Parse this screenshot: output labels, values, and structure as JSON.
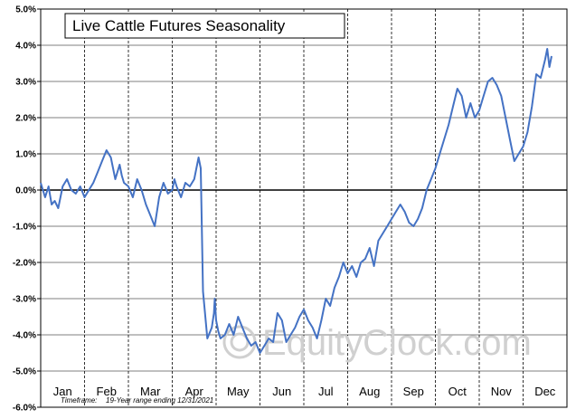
{
  "watermark": {
    "text": "EquityClock.com",
    "icon": "equityclock-logo-icon"
  },
  "timeframe": {
    "label": "Timeframe:",
    "text": "19-Year range ending 12/31/2021"
  },
  "colors": {
    "line": "#4472c4",
    "grid": "#000000",
    "watermark": "#d0d0d0"
  },
  "chart_data": {
    "type": "line",
    "title": "Live Cattle Futures Seasonality",
    "xlabel": "",
    "ylabel": "",
    "ylim": [
      -6.0,
      5.0
    ],
    "y_ticks": [
      "5.0%",
      "4.0%",
      "3.0%",
      "2.0%",
      "1.0%",
      "0.0%",
      "-1.0%",
      "-2.0%",
      "-3.0%",
      "-4.0%",
      "-5.0%",
      "-6.0%"
    ],
    "y_tick_values": [
      5,
      4,
      3,
      2,
      1,
      0,
      -1,
      -2,
      -3,
      -4,
      -5,
      -6
    ],
    "months": [
      "Jan",
      "Feb",
      "Mar",
      "Apr",
      "May",
      "Jun",
      "Jul",
      "Aug",
      "Sep",
      "Oct",
      "Nov",
      "Dec"
    ],
    "grid": {
      "horizontal": true,
      "vertical_dashed": true,
      "zero_line": true
    },
    "series": [
      {
        "x": [
          0.0,
          0.1,
          0.18,
          0.25,
          0.32,
          0.4,
          0.5,
          0.6,
          0.7,
          0.8,
          0.9,
          1.0,
          1.1,
          1.2,
          1.3,
          1.4,
          1.5,
          1.6,
          1.7,
          1.8,
          1.85,
          1.9,
          2.0,
          2.1,
          2.2,
          2.3,
          2.4,
          2.5,
          2.6,
          2.7,
          2.8,
          2.9,
          3.0,
          3.05,
          3.1,
          3.2,
          3.3,
          3.4,
          3.5,
          3.6,
          3.65,
          3.7,
          3.8,
          3.9,
          3.95,
          3.97,
          4.0,
          4.05,
          4.1,
          4.2,
          4.3,
          4.4,
          4.5,
          4.6,
          4.7,
          4.8,
          4.9,
          5.0,
          5.1,
          5.2,
          5.3,
          5.4,
          5.5,
          5.6,
          5.7,
          5.8,
          5.9,
          6.0,
          6.1,
          6.2,
          6.3,
          6.4,
          6.5,
          6.6,
          6.7,
          6.8,
          6.9,
          7.0,
          7.1,
          7.2,
          7.3,
          7.4,
          7.5,
          7.6,
          7.7,
          7.8,
          7.9,
          8.0,
          8.1,
          8.2,
          8.3,
          8.4,
          8.5,
          8.6,
          8.7,
          8.8,
          8.9,
          9.0,
          9.1,
          9.2,
          9.3,
          9.4,
          9.5,
          9.6,
          9.7,
          9.8,
          9.9,
          10.0,
          10.1,
          10.2,
          10.3,
          10.4,
          10.5,
          10.6,
          10.7,
          10.8,
          10.9,
          11.0,
          11.1,
          11.2,
          11.3,
          11.4,
          11.5,
          11.55,
          11.6,
          11.65
        ],
        "values": [
          0.2,
          -0.2,
          0.1,
          -0.4,
          -0.3,
          -0.5,
          0.1,
          0.3,
          0.0,
          -0.1,
          0.1,
          -0.2,
          0.0,
          0.2,
          0.5,
          0.8,
          1.1,
          0.9,
          0.3,
          0.7,
          0.4,
          0.2,
          0.1,
          -0.2,
          0.3,
          0.0,
          -0.4,
          -0.7,
          -1.0,
          -0.2,
          0.2,
          -0.1,
          0.0,
          0.3,
          0.1,
          -0.2,
          0.2,
          0.1,
          0.3,
          0.9,
          0.6,
          -2.8,
          -4.1,
          -3.8,
          -3.4,
          -3.0,
          -3.6,
          -3.9,
          -4.1,
          -4.0,
          -3.7,
          -4.0,
          -3.5,
          -3.8,
          -4.1,
          -4.3,
          -4.2,
          -4.5,
          -4.3,
          -4.1,
          -4.2,
          -3.4,
          -3.6,
          -4.2,
          -4.0,
          -3.8,
          -3.5,
          -3.3,
          -3.6,
          -3.8,
          -4.1,
          -3.6,
          -3.0,
          -3.2,
          -2.7,
          -2.4,
          -2.0,
          -2.3,
          -2.1,
          -2.4,
          -2.0,
          -1.9,
          -1.6,
          -2.1,
          -1.4,
          -1.2,
          -1.0,
          -0.8,
          -0.6,
          -0.4,
          -0.6,
          -0.9,
          -1.0,
          -0.8,
          -0.5,
          0.0,
          0.3,
          0.6,
          1.0,
          1.4,
          1.8,
          2.3,
          2.8,
          2.6,
          2.0,
          2.4,
          2.0,
          2.2,
          2.6,
          3.0,
          3.1,
          2.9,
          2.6,
          2.0,
          1.4,
          0.8,
          1.0,
          1.2,
          1.6,
          2.3,
          3.2,
          3.1,
          3.6,
          3.9,
          3.4,
          3.7
        ],
        "x_note": "x in months elapsed since Jan 1 (0 = start of Jan, 12 = end of Dec)"
      }
    ]
  }
}
